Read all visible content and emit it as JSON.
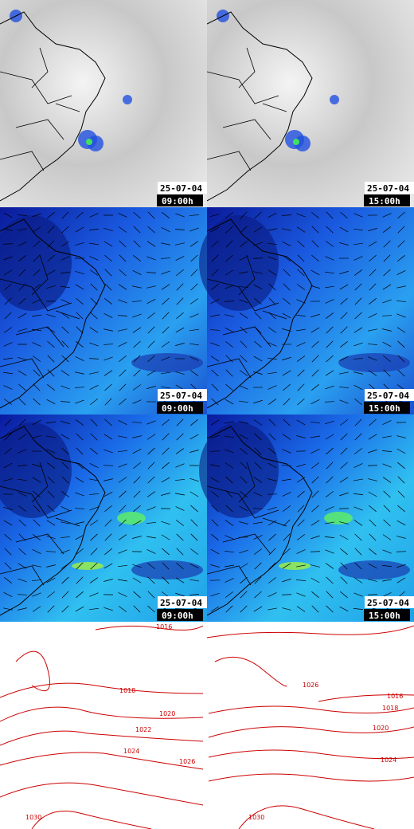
{
  "panels": [
    {
      "date": "25-07-04",
      "time": "09:00h"
    },
    {
      "date": "25-07-04",
      "time": "15:00h"
    },
    {
      "date": "25-07-04",
      "time": "09:00h"
    },
    {
      "date": "25-07-04",
      "time": "15:00h"
    },
    {
      "date": "25-07-04",
      "time": "09:00h"
    },
    {
      "date": "25-07-04",
      "time": "15:00h"
    }
  ],
  "isobars": {
    "left": [
      {
        "text": "1016"
      },
      {
        "text": "1018"
      },
      {
        "text": "1020"
      },
      {
        "text": "1022"
      },
      {
        "text": "1024"
      },
      {
        "text": "1026"
      },
      {
        "text": "1030"
      }
    ],
    "right": [
      {
        "text": "1016"
      },
      {
        "text": "1018"
      },
      {
        "text": "1020"
      },
      {
        "text": "1024"
      },
      {
        "text": "1026"
      },
      {
        "text": "1030"
      }
    ]
  }
}
